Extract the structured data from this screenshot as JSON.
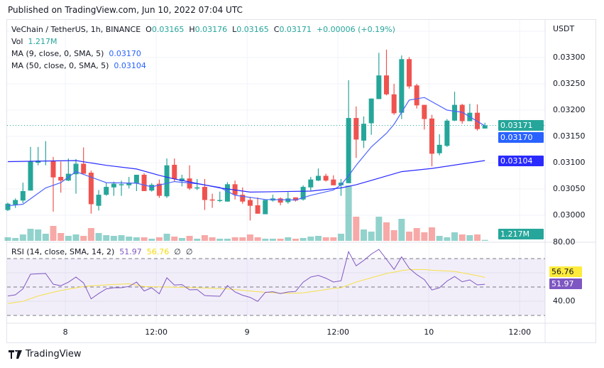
{
  "header": {
    "published": "Published on TradingView.com, Jun 10, 2022 07:04 UTC"
  },
  "legend": {
    "symbol": "VeChain / TetherUS, 1h, BINANCE",
    "o_label": "O",
    "o": "0.03165",
    "h_label": "H",
    "h": "0.03176",
    "l_label": "L",
    "l": "0.03165",
    "c_label": "C",
    "c": "0.03171",
    "change": "+0.00006 (+0.19%)",
    "vol_label": "Vol",
    "vol": "1.217M",
    "ma9_label": "MA (9, close, 0, SMA, 5)",
    "ma9": "0.03170",
    "ma50_label": "MA (50, close, 0, SMA, 5)",
    "ma50": "0.03104",
    "rsi_label": "RSI (14, close, SMA, 14, 2)",
    "rsi": "51.97",
    "rsi_sma": "56.76",
    "rsi_extra1": "∅",
    "rsi_extra2": "∅"
  },
  "price_axis": {
    "currency": "USDT",
    "ticks": [
      "0.03300",
      "0.03250",
      "0.03200",
      "0.03150",
      "0.03100",
      "0.03050",
      "0.03000"
    ],
    "tags": {
      "last": "0.03171",
      "ma9": "0.03170",
      "ma50": "0.03104",
      "volume": "1.217M"
    }
  },
  "rsi_axis": {
    "ticks": [
      "80.00",
      "40.00"
    ],
    "tags": {
      "sma": "56.76",
      "rsi": "51.97"
    }
  },
  "footer": {
    "brand": "TradingView"
  },
  "colors": {
    "up": "#26a69a",
    "down": "#ef5350",
    "ma9": "#4d63ff",
    "ma50": "#2a2aff",
    "rsi": "#7e57c2",
    "rsi_sma": "#f5e04a"
  },
  "chart_data": {
    "type": "candlestick",
    "title": "VeChain / TetherUS, 1h, BINANCE",
    "ylabel": "USDT",
    "ylim": [
      0.02975,
      0.03355
    ],
    "time_ticks": [
      {
        "label": "8",
        "index": 7.6
      },
      {
        "label": "12:00",
        "index": 19.6
      },
      {
        "label": "9",
        "index": 31.6
      },
      {
        "label": "12:00",
        "index": 43.6
      },
      {
        "label": "10",
        "index": 55.6
      },
      {
        "label": "12:00",
        "index": 67.6
      }
    ],
    "ohlc": [
      [
        0.0301,
        0.03024,
        0.03008,
        0.03022
      ],
      [
        0.0302,
        0.03032,
        0.03014,
        0.03029
      ],
      [
        0.03028,
        0.03062,
        0.03023,
        0.03046
      ],
      [
        0.03047,
        0.0313,
        0.03047,
        0.03102
      ],
      [
        0.031,
        0.0313,
        0.03095,
        0.03104
      ],
      [
        0.03103,
        0.03141,
        0.03095,
        0.03104
      ],
      [
        0.03104,
        0.03111,
        0.03007,
        0.03072
      ],
      [
        0.03073,
        0.03102,
        0.03043,
        0.03066
      ],
      [
        0.03066,
        0.03108,
        0.03065,
        0.03079
      ],
      [
        0.03078,
        0.03107,
        0.03041,
        0.03098
      ],
      [
        0.03098,
        0.03129,
        0.03079,
        0.03079
      ],
      [
        0.03081,
        0.03085,
        0.03003,
        0.03021
      ],
      [
        0.03018,
        0.03048,
        0.03009,
        0.03039
      ],
      [
        0.03039,
        0.03062,
        0.03037,
        0.03054
      ],
      [
        0.03053,
        0.03064,
        0.03037,
        0.0306
      ],
      [
        0.03057,
        0.03066,
        0.03037,
        0.03059
      ],
      [
        0.03057,
        0.03073,
        0.03051,
        0.03062
      ],
      [
        0.03061,
        0.03077,
        0.03046,
        0.03077
      ],
      [
        0.03077,
        0.0308,
        0.03046,
        0.03046
      ],
      [
        0.03047,
        0.03061,
        0.03045,
        0.03058
      ],
      [
        0.0306,
        0.03068,
        0.03033,
        0.03037
      ],
      [
        0.03036,
        0.03108,
        0.03033,
        0.03095
      ],
      [
        0.03096,
        0.03108,
        0.03064,
        0.03069
      ],
      [
        0.03065,
        0.03077,
        0.03055,
        0.0307
      ],
      [
        0.0307,
        0.03095,
        0.03048,
        0.03051
      ],
      [
        0.03051,
        0.03069,
        0.03048,
        0.03053
      ],
      [
        0.03054,
        0.03069,
        0.0301,
        0.03029
      ],
      [
        0.0303,
        0.03041,
        0.03014,
        0.03028
      ],
      [
        0.03027,
        0.03045,
        0.03025,
        0.03029
      ],
      [
        0.03026,
        0.03063,
        0.03026,
        0.03059
      ],
      [
        0.03059,
        0.03066,
        0.0303,
        0.03039
      ],
      [
        0.03039,
        0.03053,
        0.03022,
        0.03026
      ],
      [
        0.03029,
        0.03035,
        0.0299,
        0.03018
      ],
      [
        0.03019,
        0.03034,
        0.03003,
        0.03003
      ],
      [
        0.03002,
        0.03029,
        0.03002,
        0.03029
      ],
      [
        0.03028,
        0.03039,
        0.03026,
        0.03032
      ],
      [
        0.03032,
        0.03034,
        0.03019,
        0.03024
      ],
      [
        0.03025,
        0.03044,
        0.03022,
        0.03032
      ],
      [
        0.03034,
        0.03034,
        0.03026,
        0.03028
      ],
      [
        0.0303,
        0.03057,
        0.03028,
        0.03054
      ],
      [
        0.03053,
        0.03073,
        0.03047,
        0.03068
      ],
      [
        0.03066,
        0.03089,
        0.03065,
        0.03075
      ],
      [
        0.03075,
        0.03079,
        0.03064,
        0.03066
      ],
      [
        0.03068,
        0.03076,
        0.03057,
        0.03057
      ],
      [
        0.03057,
        0.03069,
        0.03037,
        0.03062
      ],
      [
        0.03061,
        0.03257,
        0.03061,
        0.03185
      ],
      [
        0.03185,
        0.03207,
        0.03109,
        0.03144
      ],
      [
        0.03142,
        0.03188,
        0.03128,
        0.03174
      ],
      [
        0.03175,
        0.03222,
        0.03153,
        0.03222
      ],
      [
        0.03221,
        0.03309,
        0.03221,
        0.03266
      ],
      [
        0.03266,
        0.03315,
        0.03228,
        0.0323
      ],
      [
        0.0323,
        0.0325,
        0.03191,
        0.03194
      ],
      [
        0.03195,
        0.03304,
        0.03183,
        0.03297
      ],
      [
        0.03297,
        0.03301,
        0.03241,
        0.03245
      ],
      [
        0.03247,
        0.0325,
        0.03203,
        0.03209
      ],
      [
        0.0321,
        0.0321,
        0.03163,
        0.03183
      ],
      [
        0.03184,
        0.03191,
        0.03093,
        0.03117
      ],
      [
        0.03118,
        0.03154,
        0.03114,
        0.03134
      ],
      [
        0.03132,
        0.03183,
        0.0313,
        0.0318
      ],
      [
        0.0318,
        0.03235,
        0.03179,
        0.0321
      ],
      [
        0.0321,
        0.03212,
        0.03174,
        0.03179
      ],
      [
        0.03179,
        0.03212,
        0.03179,
        0.03195
      ],
      [
        0.03195,
        0.03211,
        0.03161,
        0.03164
      ],
      [
        0.03165,
        0.03176,
        0.03165,
        0.03171
      ]
    ],
    "volume_m": [
      4.5,
      3.6,
      8.1,
      15.3,
      14.4,
      9.0,
      18.9,
      9.9,
      6.3,
      8.1,
      6.3,
      16.2,
      9.9,
      7.2,
      6.3,
      7.2,
      5.4,
      4.5,
      4.5,
      2.7,
      4.5,
      9.0,
      5.4,
      3.6,
      6.3,
      2.7,
      7.2,
      4.5,
      2.7,
      2.7,
      4.5,
      4.5,
      8.1,
      4.5,
      2.7,
      2.7,
      2.7,
      4.5,
      2.7,
      3.6,
      5.4,
      6.3,
      4.5,
      4.5,
      9.0,
      70.2,
      30.6,
      14.4,
      11.7,
      30.6,
      23.4,
      13.5,
      27.9,
      11.7,
      16.2,
      10.8,
      17.1,
      6.3,
      4.5,
      10.8,
      8.1,
      7.2,
      8.1,
      1.217
    ],
    "ma9": [
      [
        0,
        0.03018
      ],
      [
        2,
        0.03021
      ],
      [
        5,
        0.03052
      ],
      [
        7,
        0.03062
      ],
      [
        9,
        0.03083
      ],
      [
        13,
        0.03062
      ],
      [
        17,
        0.03061
      ],
      [
        19,
        0.03054
      ],
      [
        22,
        0.03064
      ],
      [
        25,
        0.0306
      ],
      [
        28,
        0.03053
      ],
      [
        30,
        0.03038
      ],
      [
        34,
        0.0303
      ],
      [
        38,
        0.03029
      ],
      [
        40,
        0.03038
      ],
      [
        43,
        0.03048
      ],
      [
        44,
        0.03058
      ],
      [
        45,
        0.03075
      ],
      [
        46,
        0.03095
      ],
      [
        48,
        0.0313
      ],
      [
        50,
        0.03156
      ],
      [
        51,
        0.03173
      ],
      [
        53,
        0.03219
      ],
      [
        55,
        0.03224
      ],
      [
        58,
        0.032
      ],
      [
        60,
        0.03196
      ],
      [
        63,
        0.0317
      ]
    ],
    "ma50": [
      [
        0,
        0.03102
      ],
      [
        9,
        0.03104
      ],
      [
        13,
        0.03095
      ],
      [
        17,
        0.03088
      ],
      [
        20,
        0.03076
      ],
      [
        22,
        0.03069
      ],
      [
        28,
        0.03052
      ],
      [
        32,
        0.03044
      ],
      [
        40,
        0.03046
      ],
      [
        44,
        0.03052
      ],
      [
        46,
        0.03058
      ],
      [
        52,
        0.03083
      ],
      [
        56,
        0.03089
      ],
      [
        63,
        0.03104
      ]
    ],
    "rsi": {
      "ylim": [
        30,
        70
      ],
      "bands": [
        70,
        50,
        30
      ],
      "values": [
        43.7,
        44.5,
        48.7,
        59.0,
        59.3,
        59.5,
        52.0,
        50.9,
        53.4,
        57.0,
        52.9,
        41.7,
        45.4,
        48.7,
        49.5,
        49.5,
        50.4,
        53.5,
        47.2,
        49.5,
        45.2,
        56.5,
        51.4,
        51.7,
        48.0,
        48.2,
        44.0,
        43.7,
        43.5,
        51.0,
        46.5,
        44.2,
        42.7,
        39.9,
        46.2,
        46.7,
        45.4,
        46.5,
        46.9,
        53.4,
        57.0,
        58.2,
        56.2,
        53.5,
        54.4,
        74.9,
        64.9,
        68.7,
        73.2,
        76.5,
        69.5,
        62.4,
        71.2,
        63.2,
        58.7,
        55.2,
        47.9,
        49.5,
        54.2,
        57.4,
        53.7,
        55.0,
        51.5,
        51.97
      ],
      "sma": [
        38.4,
        39.1,
        39.9,
        41.8,
        43.7,
        45.0,
        46.3,
        47.5,
        48.5,
        49.4,
        50.3,
        50.8,
        51.2,
        51.5,
        51.8,
        52.0,
        52.3,
        51.3,
        50.3,
        50.2,
        50.1,
        50.0,
        49.9,
        49.8,
        49.6,
        49.5,
        49.3,
        49.1,
        48.9,
        48.7,
        48.2,
        47.7,
        47.2,
        46.7,
        46.3,
        46.0,
        45.7,
        45.6,
        45.7,
        45.9,
        46.6,
        47.4,
        48.2,
        49.0,
        49.5,
        51.5,
        53.5,
        55.0,
        56.5,
        58.0,
        59.5,
        60.5,
        61.5,
        62.2,
        62.3,
        62.3,
        61.8,
        61.5,
        61.3,
        61.0,
        60.0,
        59.0,
        58.0,
        56.76
      ]
    }
  }
}
